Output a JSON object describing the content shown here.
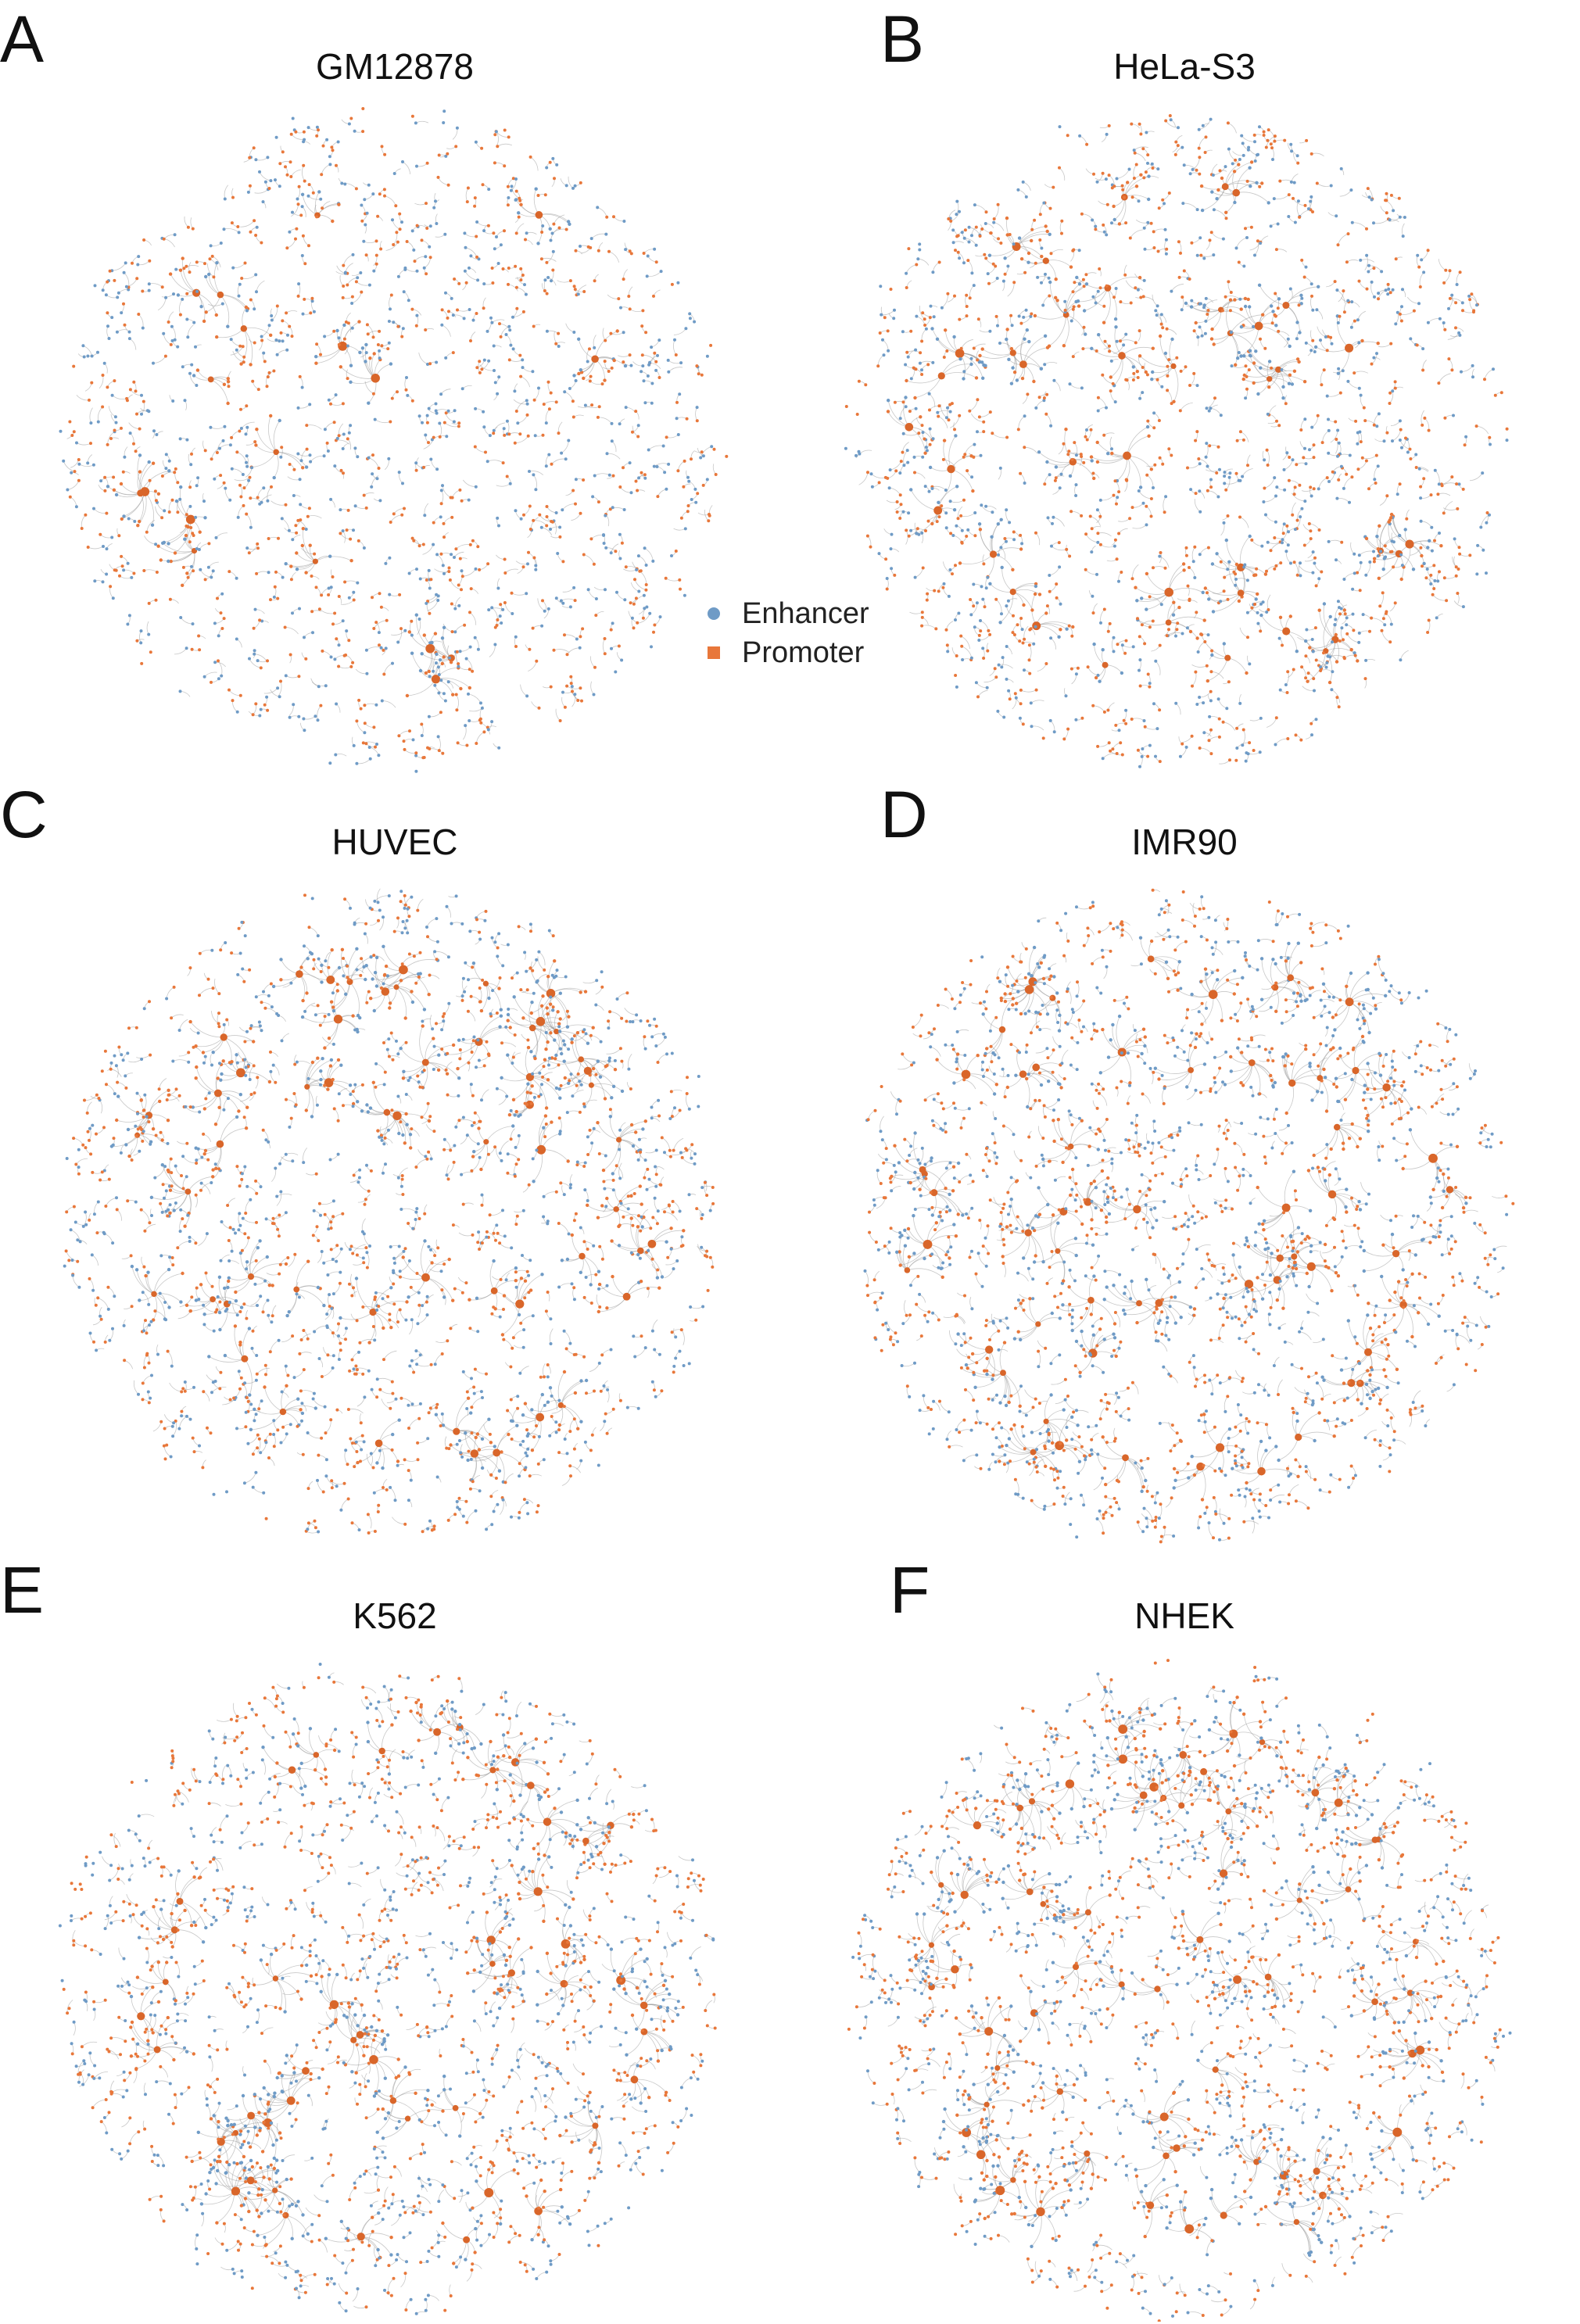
{
  "panels": [
    {
      "letter": "A",
      "title": "GM12878"
    },
    {
      "letter": "B",
      "title": "HeLa-S3"
    },
    {
      "letter": "C",
      "title": "HUVEC"
    },
    {
      "letter": "D",
      "title": "IMR90"
    },
    {
      "letter": "E",
      "title": "K562"
    },
    {
      "letter": "F",
      "title": "NHEK"
    }
  ],
  "legend": {
    "enhancer": {
      "label": "Enhancer",
      "symbol": "circle",
      "color": "#6f9bc6"
    },
    "promoter": {
      "label": "Promoter",
      "symbol": "square",
      "color": "#e8773a"
    }
  },
  "colors": {
    "edge": "#9a9a9a",
    "hub": "#d9662a"
  }
}
